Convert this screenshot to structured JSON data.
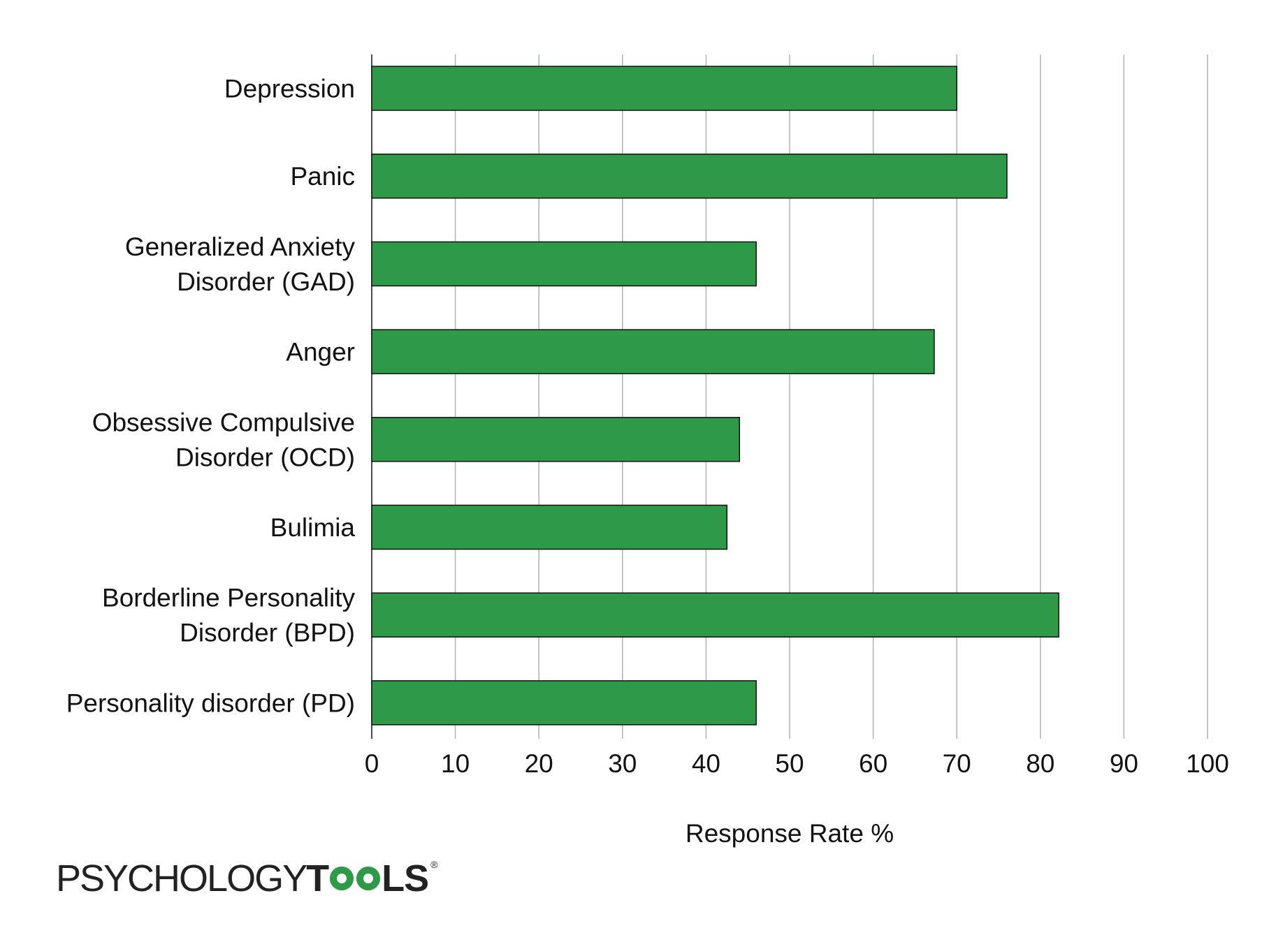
{
  "chart_data": {
    "type": "bar",
    "orientation": "horizontal",
    "categories": [
      [
        "Depression"
      ],
      [
        "Panic"
      ],
      [
        "Generalized Anxiety",
        "Disorder (GAD)"
      ],
      [
        "Anger"
      ],
      [
        "Obsessive Compulsive",
        "Disorder (OCD)"
      ],
      [
        "Bulimia"
      ],
      [
        "Borderline Personality",
        "Disorder (BPD)"
      ],
      [
        "Personality disorder (PD)"
      ]
    ],
    "values": [
      70,
      76,
      46,
      67.3,
      44,
      42.5,
      82.2,
      46
    ],
    "xlabel": "Response Rate %",
    "ylabel": "",
    "xlim": [
      0,
      100
    ],
    "ticks": [
      "0",
      "10",
      "20",
      "30",
      "40",
      "50",
      "60",
      "70",
      "80",
      "90",
      "100"
    ],
    "grid": true,
    "colors": {
      "bar": "#2e9a48",
      "bar_border": "#111111",
      "grid": "#b3b3b3"
    }
  },
  "logo": {
    "text_light": "PSYCHOLOGY",
    "text_bold_start": "T",
    "text_bold_end": "LS",
    "registered": "®",
    "brand_color": "#2e9a48"
  }
}
